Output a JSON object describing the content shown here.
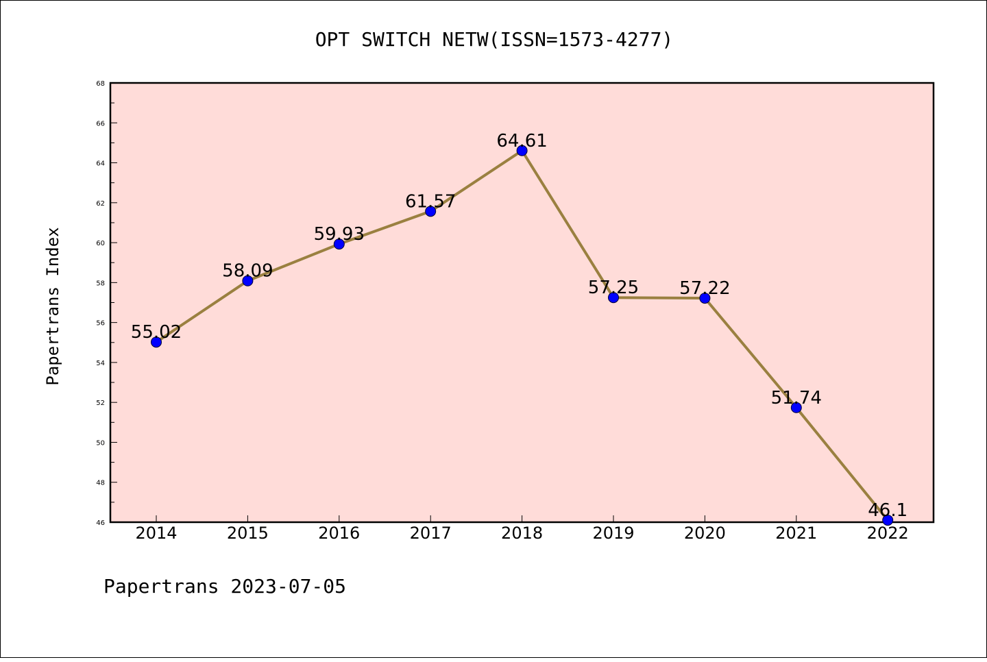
{
  "chart_data": {
    "type": "line",
    "title": "OPT SWITCH NETW(ISSN=1573-4277)",
    "xlabel": "",
    "ylabel": "Papertrans Index",
    "x": [
      "2014",
      "2015",
      "2016",
      "2017",
      "2018",
      "2019",
      "2020",
      "2021",
      "2022"
    ],
    "series": [
      {
        "values": [
          55.02,
          58.09,
          59.93,
          61.57,
          64.61,
          57.25,
          57.22,
          51.74,
          46.1
        ],
        "labels": [
          "55.02",
          "58.09",
          "59.93",
          "61.57",
          "64.61",
          "57.25",
          "57.22",
          "51.74",
          "46.1"
        ],
        "line_color": "#9a8040",
        "marker_color": "#0000ff"
      }
    ],
    "ylim": [
      46,
      68
    ],
    "yticks": [
      "46",
      "48",
      "50",
      "52",
      "54",
      "56",
      "58",
      "60",
      "62",
      "64",
      "66",
      "68"
    ],
    "plot_background": "#ffdcd9",
    "grid": false
  },
  "footer": "Papertrans 2023-07-05"
}
